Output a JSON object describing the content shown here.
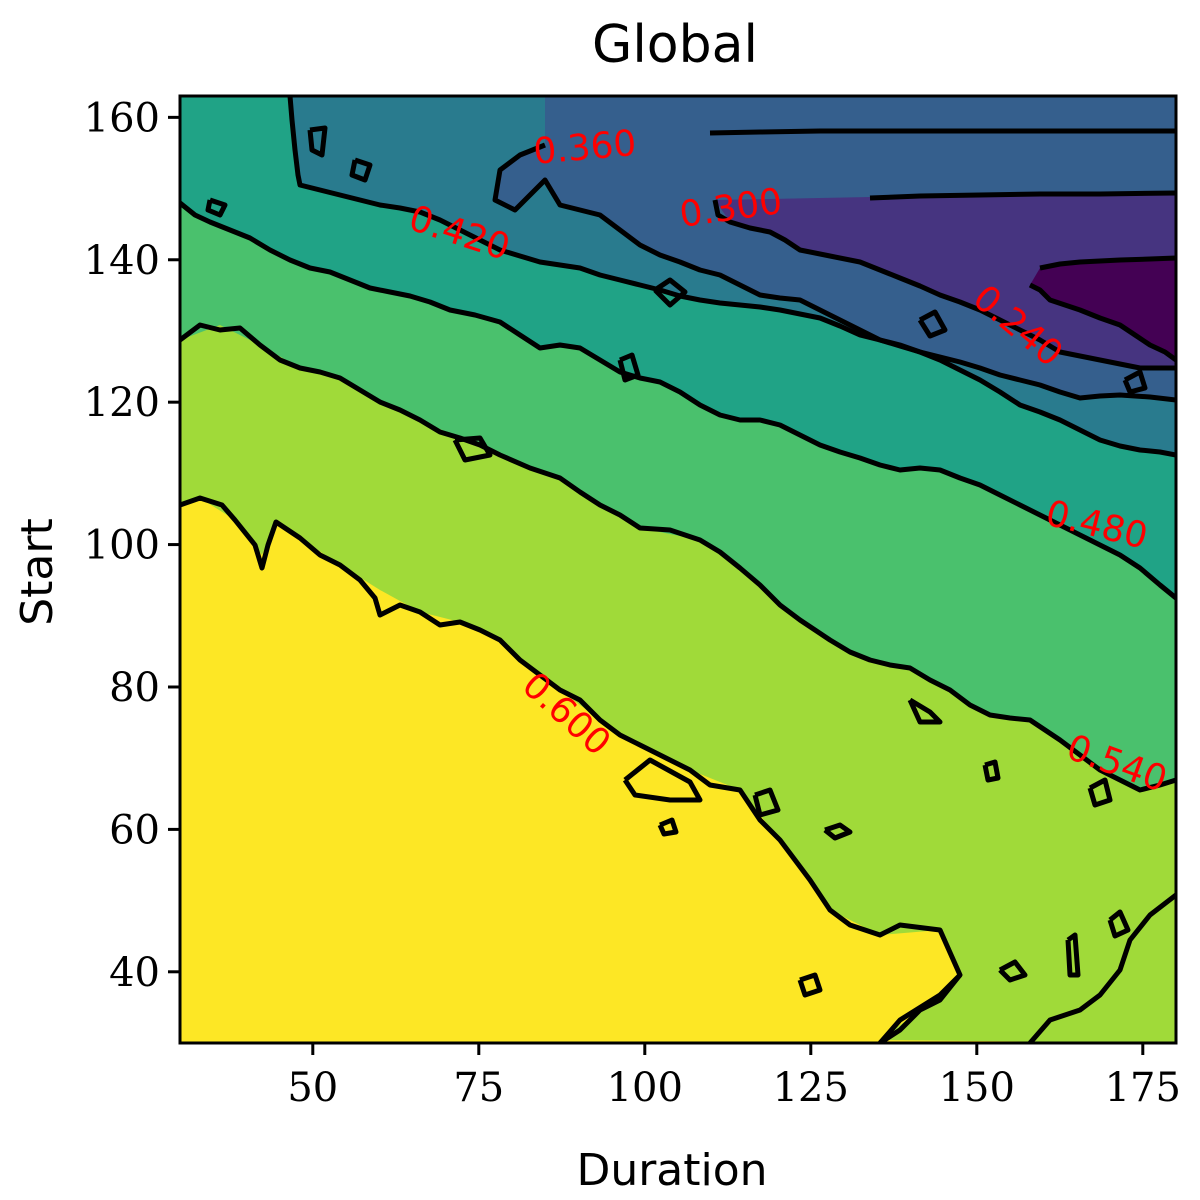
{
  "chart_data": {
    "type": "contour",
    "title": "Global",
    "xlabel": "Duration",
    "ylabel": "Start",
    "xlim": [
      30,
      180
    ],
    "ylim": [
      30,
      163
    ],
    "xticks": [
      50,
      75,
      100,
      125,
      150,
      175
    ],
    "yticks": [
      40,
      60,
      80,
      100,
      120,
      140,
      160
    ],
    "grid": false,
    "colormap": "viridis",
    "levels": [
      {
        "value": 0.24,
        "color": "#440154"
      },
      {
        "value": 0.3,
        "color": "#463480"
      },
      {
        "value": 0.36,
        "color": "#355f8d"
      },
      {
        "value": 0.42,
        "color": "#297b8e"
      },
      {
        "value": 0.48,
        "color": "#20a386"
      },
      {
        "value": 0.54,
        "color": "#4ac16d"
      },
      {
        "value": 0.6,
        "color": "#a0da39"
      },
      {
        "value": 0.66,
        "color": "#fde725"
      }
    ],
    "contour_labels": [
      {
        "text": "0.360",
        "x": 91,
        "y": 155.5,
        "angle": -5
      },
      {
        "text": "0.300",
        "x": 113,
        "y": 147,
        "angle": -8
      },
      {
        "text": "0.420",
        "x": 72,
        "y": 143.5,
        "angle": 18
      },
      {
        "text": "0.240",
        "x": 156,
        "y": 130.5,
        "angle": 40
      },
      {
        "text": "0.480",
        "x": 168,
        "y": 102.5,
        "angle": 14
      },
      {
        "text": "0.600",
        "x": 88,
        "y": 76,
        "angle": 42
      },
      {
        "text": "0.540",
        "x": 171,
        "y": 69,
        "angle": 20
      }
    ]
  }
}
